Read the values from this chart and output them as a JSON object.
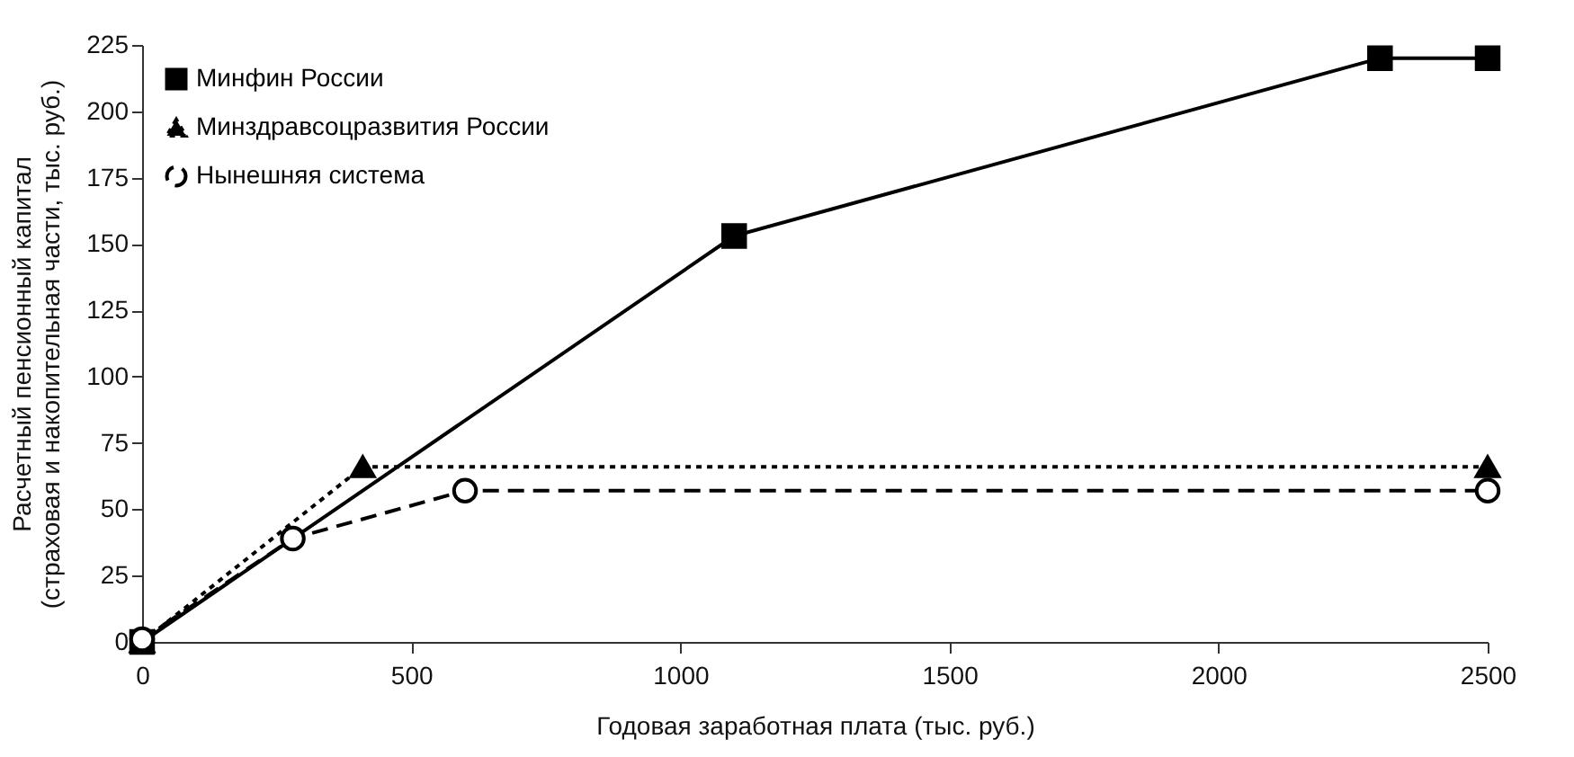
{
  "chart_data": {
    "type": "line",
    "xlabel": "Годовая заработная плата (тыс. руб.)",
    "ylabel": "Расчетный пенсионный капитал\n(страховая и накопительная части, тыс. руб.)",
    "xlim": [
      0,
      2500
    ],
    "xticks": [
      0,
      500,
      1000,
      1500,
      2000,
      2500
    ],
    "ylim": [
      0,
      225
    ],
    "yticks": [
      0,
      25,
      50,
      75,
      100,
      125,
      150,
      175,
      200,
      225
    ],
    "grid": false,
    "legend": "top left",
    "series": [
      {
        "name": "Минфин России",
        "color": "#000000",
        "marker": "square",
        "line_style": "solid",
        "x": [
          0,
          1100,
          2300,
          2500
        ],
        "values": [
          0,
          153,
          220,
          220
        ]
      },
      {
        "name": "Минздравсоцразвития России",
        "color": "#000000",
        "marker": "triangle",
        "line_style": "dotted",
        "x": [
          0,
          410,
          2500
        ],
        "values": [
          0,
          66,
          66
        ]
      },
      {
        "name": "Нынешняя система",
        "color": "#000000",
        "marker": "circle",
        "line_style": "dashed",
        "x": [
          0,
          280,
          600,
          2500
        ],
        "values": [
          1,
          39,
          57,
          57
        ]
      }
    ]
  }
}
